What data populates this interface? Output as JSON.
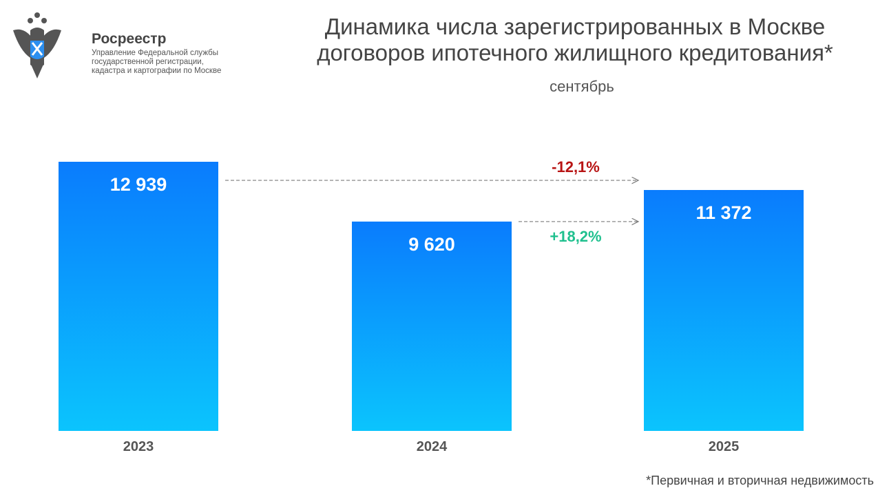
{
  "header": {
    "org_name": "Росреестр",
    "org_subtitle": "Управление Федеральной службы государственной регистрации, кадастра и картографии по Москве",
    "title_line1": "Динамика числа зарегистрированных в Москве",
    "title_line2": "договоров ипотечного жилищного кредитования*",
    "subtitle": "сентябрь"
  },
  "footnote": "*Первичная и вторичная недвижимость",
  "colors": {
    "bar_top": "#0a7cfd",
    "bar_bottom": "#0bc4fd",
    "negative": "#b81414",
    "positive": "#1fc08e"
  },
  "chart_data": {
    "type": "bar",
    "title": "Динамика числа зарегистрированных в Москве договоров ипотечного жилищного кредитования*",
    "categories": [
      "2023",
      "2024",
      "2025"
    ],
    "values": [
      12939,
      9620,
      11372
    ],
    "value_labels": [
      "12 939",
      "9 620",
      "11 372"
    ],
    "ylim": [
      -2000,
      13000
    ],
    "grid": false,
    "annotations": [
      {
        "from": "2023",
        "to": "2025",
        "text": "-12,1%",
        "sign": "negative"
      },
      {
        "from": "2024",
        "to": "2025",
        "text": "+18,2%",
        "sign": "positive"
      }
    ]
  }
}
